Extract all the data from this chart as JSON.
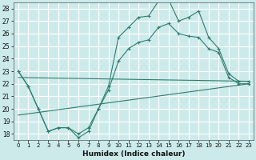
{
  "title": "",
  "xlabel": "Humidex (Indice chaleur)",
  "ylabel": "",
  "background_color": "#cceaea",
  "grid_color": "#ffffff",
  "line_color": "#2e7d6e",
  "xlim": [
    -0.5,
    23.5
  ],
  "ylim": [
    17.5,
    28.5
  ],
  "yticks": [
    18,
    19,
    20,
    21,
    22,
    23,
    24,
    25,
    26,
    27,
    28
  ],
  "xticks": [
    0,
    1,
    2,
    3,
    4,
    5,
    6,
    7,
    8,
    9,
    10,
    11,
    12,
    13,
    14,
    15,
    16,
    17,
    18,
    19,
    20,
    21,
    22,
    23
  ],
  "series": [
    {
      "x": [
        0,
        1,
        2,
        3,
        4,
        5,
        6,
        7,
        8,
        9,
        10,
        11,
        12,
        13,
        14,
        15,
        16,
        17,
        18,
        19,
        20,
        21,
        22,
        23
      ],
      "y": [
        23.0,
        21.8,
        20.0,
        18.2,
        18.5,
        18.5,
        17.7,
        18.2,
        20.0,
        21.8,
        25.7,
        26.5,
        27.3,
        27.4,
        28.6,
        28.7,
        27.0,
        27.3,
        27.8,
        25.7,
        24.8,
        22.8,
        22.2,
        22.2
      ],
      "has_markers": true
    },
    {
      "x": [
        0,
        1,
        2,
        3,
        4,
        5,
        6,
        7,
        8,
        9,
        10,
        11,
        12,
        13,
        14,
        15,
        16,
        17,
        18,
        19,
        20,
        21,
        22,
        23
      ],
      "y": [
        23.0,
        21.8,
        20.0,
        18.2,
        18.5,
        18.5,
        18.0,
        18.5,
        20.0,
        21.5,
        23.8,
        24.8,
        25.3,
        25.5,
        26.5,
        26.8,
        26.0,
        25.8,
        25.7,
        24.8,
        24.5,
        22.5,
        22.0,
        22.0
      ],
      "has_markers": true
    },
    {
      "x": [
        0,
        23
      ],
      "y": [
        22.5,
        22.2
      ],
      "has_markers": false
    },
    {
      "x": [
        0,
        23
      ],
      "y": [
        19.5,
        22.0
      ],
      "has_markers": false
    }
  ]
}
